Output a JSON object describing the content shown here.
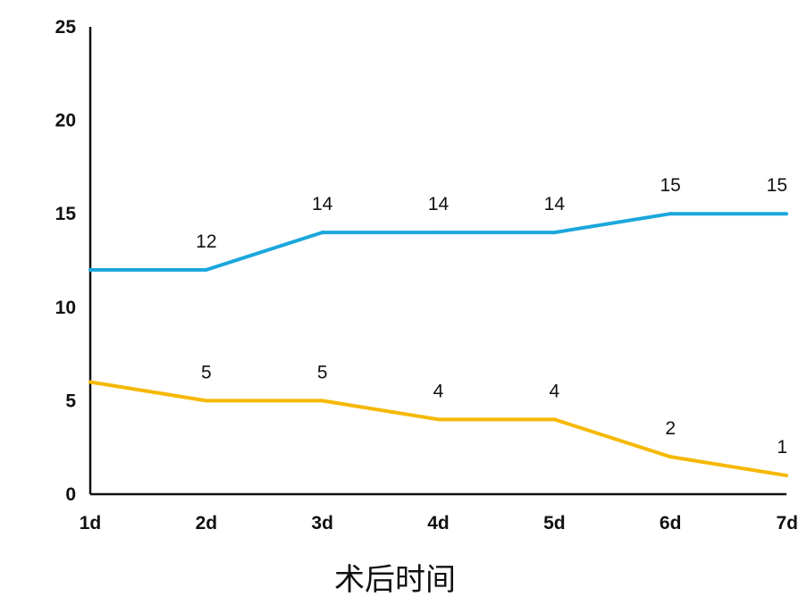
{
  "chart_data": {
    "type": "line",
    "title": "",
    "xlabel": "术后时间",
    "ylabel": "",
    "categories": [
      "1d",
      "2d",
      "3d",
      "4d",
      "5d",
      "6d",
      "7d"
    ],
    "ylim": [
      0,
      25
    ],
    "yticks": [
      0,
      5,
      10,
      15,
      20,
      25
    ],
    "grid": false,
    "legend": "none",
    "series": [
      {
        "color": "#1AA7DC",
        "values": [
          12,
          12,
          14,
          14,
          14,
          15,
          15
        ],
        "labels": [
          "",
          "12",
          "14",
          "14",
          "14",
          "15",
          "15"
        ]
      },
      {
        "color": "#F5B800",
        "values": [
          6,
          5,
          5,
          4,
          4,
          2,
          1
        ],
        "labels": [
          "",
          "5",
          "5",
          "4",
          "4",
          "2",
          "1"
        ]
      }
    ]
  }
}
